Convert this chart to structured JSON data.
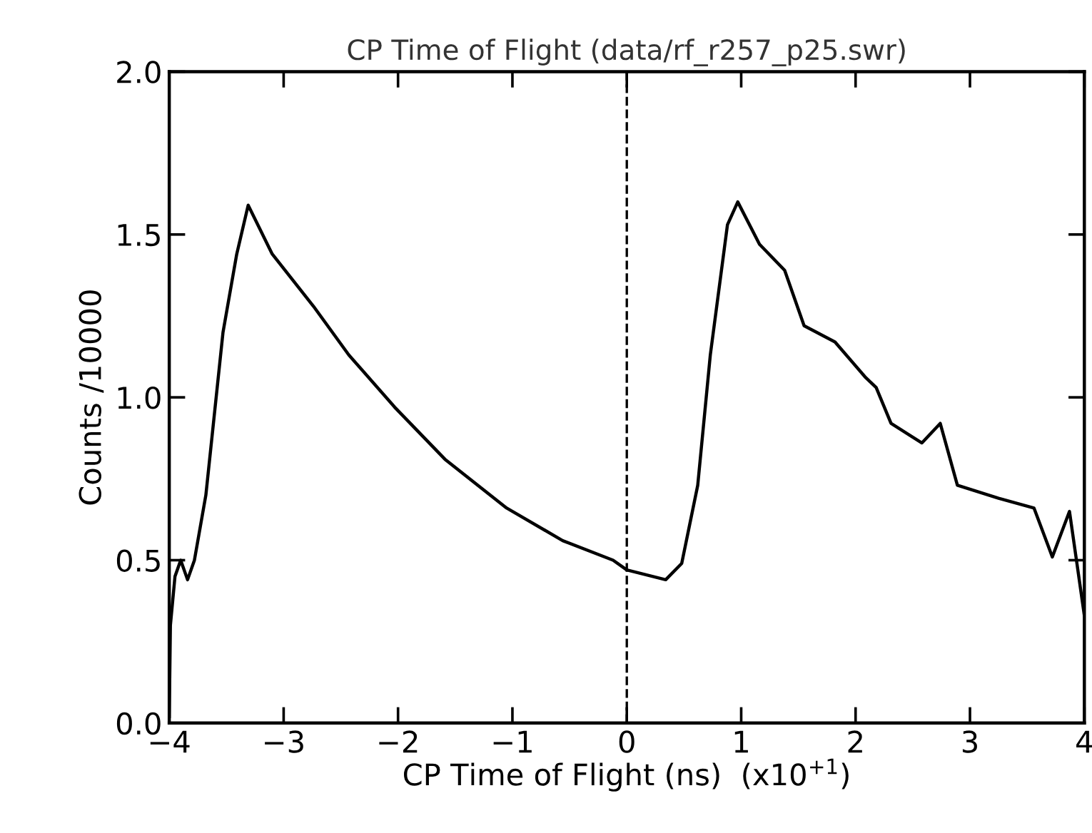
{
  "chart_data": {
    "type": "line",
    "title": "CP Time of Flight (data/rf_r257_p25.swr)",
    "xlabel": "CP Time of Flight (ns)  (x10$^{+1}$)",
    "ylabel": "Counts /10000",
    "xlim": [
      -4,
      4
    ],
    "ylim": [
      0,
      2
    ],
    "xticks": [
      -4,
      -3,
      -2,
      -1,
      0,
      1,
      2,
      3,
      4
    ],
    "yticks": [
      {
        "value": 0,
        "label": "0.0"
      },
      {
        "value": 0.5,
        "label": "0.5"
      },
      {
        "value": 1,
        "label": "1.0"
      },
      {
        "value": 1.5,
        "label": "1.5"
      },
      {
        "value": 2,
        "label": "2.0"
      }
    ],
    "grid": false,
    "legend": false,
    "marker": "none",
    "line_style": "solid",
    "ref_lines": [
      {
        "axis": "x",
        "value": 0,
        "label": null,
        "color": "#000000",
        "line_style": "dashed"
      }
    ],
    "series": [
      {
        "color": "#000000",
        "x": [
          -4.0,
          -3.99,
          -3.95,
          -3.9,
          -3.84,
          -3.78,
          -3.68,
          -3.53,
          -3.41,
          -3.31,
          -3.1,
          -2.74,
          -2.43,
          -2.03,
          -1.59,
          -1.05,
          -0.56,
          -0.12,
          0.0,
          0.34,
          0.48,
          0.62,
          0.73,
          0.88,
          0.97,
          1.16,
          1.38,
          1.55,
          1.82,
          2.09,
          2.18,
          2.31,
          2.58,
          2.74,
          2.89,
          3.25,
          3.56,
          3.72,
          3.87,
          4.0
        ],
        "values": [
          0.02,
          0.3,
          0.45,
          0.5,
          0.44,
          0.5,
          0.7,
          1.2,
          1.44,
          1.59,
          1.44,
          1.28,
          1.13,
          0.97,
          0.81,
          0.66,
          0.56,
          0.5,
          0.47,
          0.44,
          0.49,
          0.73,
          1.13,
          1.53,
          1.6,
          1.47,
          1.39,
          1.22,
          1.17,
          1.06,
          1.03,
          0.92,
          0.86,
          0.92,
          0.73,
          0.69,
          0.66,
          0.51,
          0.65,
          0.33
        ]
      }
    ]
  }
}
